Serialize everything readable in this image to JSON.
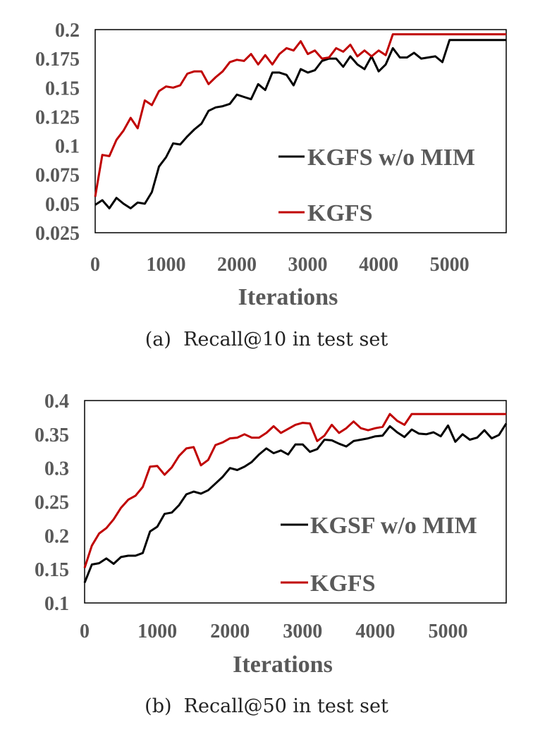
{
  "colors": {
    "black_series": "#000000",
    "red_series": "#c00000",
    "tick_text": "#595959",
    "frame": "#000000"
  },
  "chart_data": [
    {
      "type": "line",
      "panel": "a",
      "caption": "(a)  Recall@10 in test set",
      "xlabel": "Iterations",
      "ylabel": "",
      "xlim": [
        0,
        5800
      ],
      "ylim": [
        0.025,
        0.2
      ],
      "xticks": [
        0,
        1000,
        2000,
        3000,
        4000,
        5000
      ],
      "xtick_labels": [
        "0",
        "1000",
        "2000",
        "3000",
        "4000",
        "5000"
      ],
      "yticks": [
        0.025,
        0.05,
        0.075,
        0.1,
        0.125,
        0.15,
        0.175,
        0.2
      ],
      "ytick_labels": [
        "0.025",
        "0.05",
        "0.075",
        "0.1",
        "0.125",
        "0.15",
        "0.175",
        "0.2"
      ],
      "grid": false,
      "legend_position": "right",
      "x_step": 100,
      "series": [
        {
          "name": "KGFS w/o MIM",
          "color": "#000000",
          "values": [
            0.049,
            0.053,
            0.046,
            0.055,
            0.05,
            0.046,
            0.051,
            0.05,
            0.06,
            0.082,
            0.09,
            0.102,
            0.101,
            0.108,
            0.114,
            0.119,
            0.13,
            0.133,
            0.134,
            0.136,
            0.144,
            0.142,
            0.14,
            0.153,
            0.148,
            0.163,
            0.163,
            0.161,
            0.152,
            0.166,
            0.163,
            0.165,
            0.173,
            0.175,
            0.175,
            0.168,
            0.177,
            0.17,
            0.166,
            0.177,
            0.164,
            0.17,
            0.184,
            0.176,
            0.176,
            0.18,
            0.175,
            0.176,
            0.177,
            0.172,
            0.191,
            0.191,
            0.191,
            0.191,
            0.191,
            0.191,
            0.191,
            0.191,
            0.191
          ]
        },
        {
          "name": "KGFS",
          "color": "#c00000",
          "values": [
            0.056,
            0.092,
            0.091,
            0.105,
            0.113,
            0.124,
            0.115,
            0.139,
            0.135,
            0.147,
            0.151,
            0.15,
            0.152,
            0.162,
            0.164,
            0.164,
            0.153,
            0.159,
            0.164,
            0.172,
            0.174,
            0.173,
            0.179,
            0.17,
            0.178,
            0.17,
            0.179,
            0.184,
            0.182,
            0.19,
            0.179,
            0.182,
            0.175,
            0.176,
            0.184,
            0.181,
            0.187,
            0.177,
            0.182,
            0.177,
            0.182,
            0.178,
            0.196,
            0.196,
            0.196,
            0.196,
            0.196,
            0.196,
            0.196,
            0.196,
            0.196,
            0.196,
            0.196,
            0.196,
            0.196,
            0.196,
            0.196,
            0.196,
            0.196
          ]
        }
      ]
    },
    {
      "type": "line",
      "panel": "b",
      "caption": "(b)  Recall@50 in test set",
      "xlabel": "Iterations",
      "ylabel": "",
      "xlim": [
        0,
        5800
      ],
      "ylim": [
        0.1,
        0.4
      ],
      "xticks": [
        0,
        1000,
        2000,
        3000,
        4000,
        5000
      ],
      "xtick_labels": [
        "0",
        "1000",
        "2000",
        "3000",
        "4000",
        "5000"
      ],
      "yticks": [
        0.1,
        0.15,
        0.2,
        0.25,
        0.3,
        0.35,
        0.4
      ],
      "ytick_labels": [
        "0.1",
        "0.15",
        "0.2",
        "0.25",
        "0.3",
        "0.35",
        "0.4"
      ],
      "grid": false,
      "legend_position": "right",
      "x_step": 100,
      "series": [
        {
          "name": "KGSF w/o MIM",
          "color": "#000000",
          "values": [
            0.13,
            0.157,
            0.159,
            0.166,
            0.158,
            0.168,
            0.17,
            0.17,
            0.174,
            0.206,
            0.213,
            0.232,
            0.234,
            0.245,
            0.261,
            0.265,
            0.262,
            0.267,
            0.277,
            0.287,
            0.3,
            0.297,
            0.302,
            0.309,
            0.32,
            0.329,
            0.322,
            0.326,
            0.32,
            0.335,
            0.335,
            0.324,
            0.328,
            0.342,
            0.341,
            0.336,
            0.332,
            0.34,
            0.342,
            0.344,
            0.347,
            0.348,
            0.362,
            0.353,
            0.346,
            0.357,
            0.351,
            0.35,
            0.353,
            0.347,
            0.363,
            0.339,
            0.35,
            0.342,
            0.345,
            0.356,
            0.344,
            0.349,
            0.366
          ]
        },
        {
          "name": "KGFS",
          "color": "#c00000",
          "values": [
            0.152,
            0.185,
            0.203,
            0.211,
            0.224,
            0.241,
            0.253,
            0.259,
            0.272,
            0.302,
            0.303,
            0.29,
            0.301,
            0.318,
            0.329,
            0.331,
            0.304,
            0.312,
            0.334,
            0.338,
            0.344,
            0.345,
            0.35,
            0.345,
            0.345,
            0.352,
            0.362,
            0.352,
            0.358,
            0.364,
            0.367,
            0.366,
            0.34,
            0.348,
            0.364,
            0.352,
            0.359,
            0.369,
            0.359,
            0.356,
            0.359,
            0.361,
            0.38,
            0.37,
            0.364,
            0.38,
            0.38,
            0.38,
            0.38,
            0.38,
            0.38,
            0.38,
            0.38,
            0.38,
            0.38,
            0.38,
            0.38,
            0.38,
            0.38
          ]
        }
      ]
    }
  ]
}
